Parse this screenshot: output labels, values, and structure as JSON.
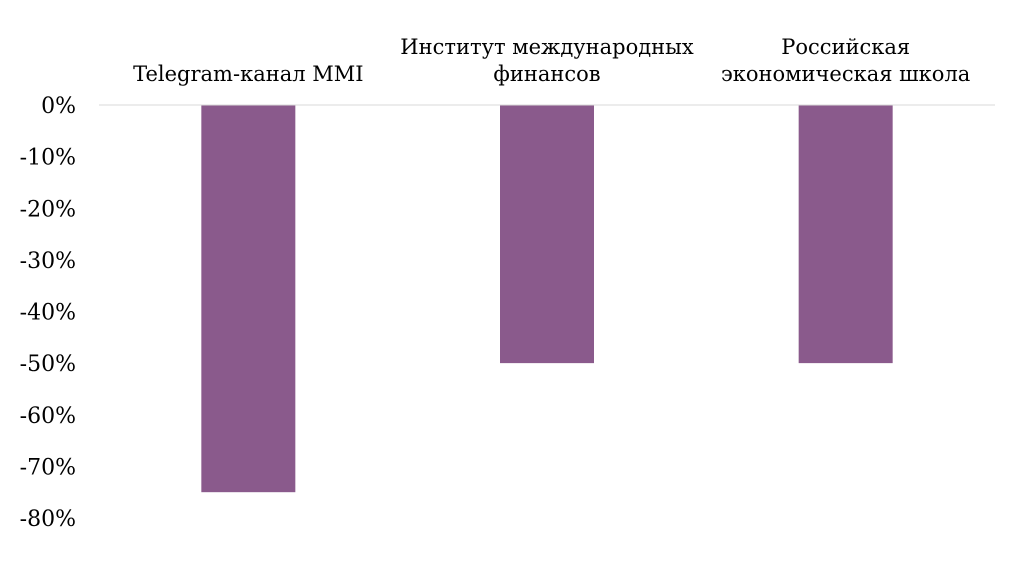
{
  "chart_data": {
    "type": "bar",
    "categories": [
      [
        "Telegram-канал MMI"
      ],
      [
        "Институт международных",
        "финансов"
      ],
      [
        "Российская",
        "экономическая школа"
      ]
    ],
    "values": [
      -75,
      -50,
      -50
    ],
    "ylim": [
      -80,
      0
    ],
    "yticks": [
      0,
      -10,
      -20,
      -30,
      -40,
      -50,
      -60,
      -70,
      -80
    ],
    "ytick_labels": [
      "0%",
      "-10%",
      "-20%",
      "-30%",
      "-40%",
      "-50%",
      "-60%",
      "-70%",
      "-80%"
    ],
    "bar_color": "#8a5a8c",
    "axis_color": "#d9d9d9",
    "grid": false,
    "legend": "none"
  }
}
